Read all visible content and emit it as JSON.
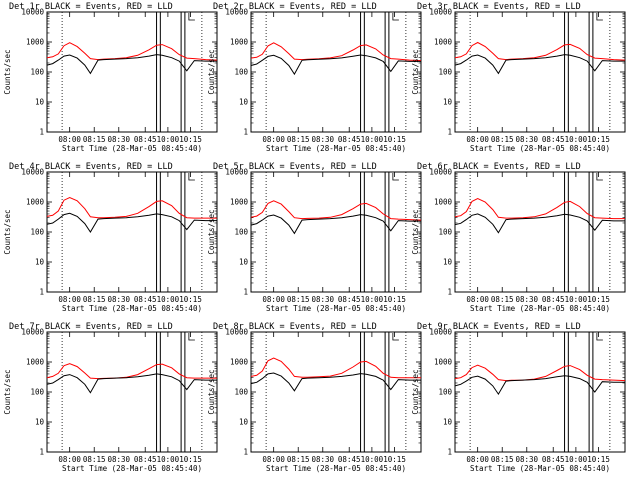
{
  "figure": {
    "ytick_labels": [
      "1",
      "10",
      "100",
      "1000",
      "10000"
    ],
    "ytick_values": [
      1,
      10,
      100,
      1000,
      10000
    ],
    "xtick_labels": [
      "08:00",
      "08:15",
      "08:30",
      "08:45",
      "10:00",
      "10:15"
    ],
    "xtick_times": [
      "08:00",
      "08:15",
      "08:30",
      "08:45",
      "10:00",
      "10:15"
    ],
    "ylabel": "Counts/sec",
    "xlabel": "Start Time (28-Mar-05 08:45:40)",
    "colors": {
      "events": "#000000",
      "lld": "#ff0000"
    }
  },
  "chart_data": [
    {
      "type": "line",
      "title": "Det 1r BLACK = Events, RED = LLD",
      "ylim": [
        1,
        10000
      ],
      "yscale": "log",
      "x_unit": "minutes",
      "x": [
        0,
        3,
        6,
        9,
        12,
        16,
        20,
        23,
        27,
        30,
        36,
        42,
        48,
        54,
        58,
        61,
        66,
        70,
        74,
        78,
        84,
        90
      ],
      "series": [
        {
          "color": "#ff0000",
          "values": [
            300,
            320,
            400,
            750,
            950,
            700,
            420,
            280,
            260,
            270,
            280,
            300,
            360,
            550,
            780,
            820,
            600,
            380,
            290,
            280,
            260,
            250
          ]
        },
        {
          "color": "#000000",
          "values": [
            170,
            190,
            250,
            340,
            370,
            290,
            170,
            90,
            250,
            260,
            270,
            280,
            300,
            340,
            380,
            360,
            300,
            230,
            110,
            240,
            230,
            230
          ]
        }
      ],
      "vlines_dotted": [
        8,
        82
      ],
      "vlines_solid": [
        58,
        60,
        71,
        73
      ]
    },
    {
      "type": "line",
      "title": "Det 2r BLACK = Events, RED = LLD",
      "ylim": [
        1,
        10000
      ],
      "yscale": "log",
      "x_unit": "minutes",
      "x": [
        0,
        3,
        6,
        9,
        12,
        16,
        20,
        23,
        27,
        30,
        36,
        42,
        48,
        54,
        58,
        61,
        66,
        70,
        74,
        78,
        84,
        90
      ],
      "series": [
        {
          "color": "#ff0000",
          "values": [
            290,
            310,
            390,
            740,
            940,
            690,
            410,
            270,
            260,
            265,
            275,
            295,
            350,
            540,
            760,
            800,
            590,
            370,
            280,
            270,
            250,
            240
          ]
        },
        {
          "color": "#000000",
          "values": [
            165,
            185,
            245,
            330,
            360,
            285,
            165,
            85,
            245,
            255,
            265,
            275,
            295,
            335,
            370,
            350,
            295,
            225,
            105,
            235,
            225,
            225
          ]
        }
      ],
      "vlines_dotted": [
        8,
        82
      ],
      "vlines_solid": [
        58,
        60,
        71,
        73
      ]
    },
    {
      "type": "line",
      "title": "Det 3r BLACK = Events, RED = LLD",
      "ylim": [
        1,
        10000
      ],
      "yscale": "log",
      "x_unit": "minutes",
      "x": [
        0,
        3,
        6,
        9,
        12,
        16,
        20,
        23,
        27,
        30,
        36,
        42,
        48,
        54,
        58,
        61,
        66,
        70,
        74,
        78,
        84,
        90
      ],
      "series": [
        {
          "color": "#ff0000",
          "values": [
            300,
            320,
            400,
            760,
            960,
            710,
            420,
            280,
            260,
            270,
            280,
            300,
            360,
            560,
            800,
            830,
            610,
            380,
            290,
            280,
            260,
            250
          ]
        },
        {
          "color": "#000000",
          "values": [
            170,
            190,
            250,
            340,
            370,
            290,
            170,
            90,
            250,
            260,
            270,
            280,
            300,
            340,
            380,
            360,
            300,
            230,
            110,
            240,
            230,
            230
          ]
        }
      ],
      "vlines_dotted": [
        8,
        82
      ],
      "vlines_solid": [
        58,
        60,
        71,
        73
      ]
    },
    {
      "type": "line",
      "title": "Det 4r BLACK = Events, RED = LLD",
      "ylim": [
        1,
        10000
      ],
      "yscale": "log",
      "x_unit": "minutes",
      "x": [
        0,
        3,
        6,
        9,
        12,
        16,
        20,
        23,
        27,
        30,
        36,
        42,
        48,
        54,
        58,
        61,
        66,
        70,
        74,
        78,
        84,
        90
      ],
      "series": [
        {
          "color": "#ff0000",
          "values": [
            330,
            360,
            500,
            1150,
            1400,
            1100,
            600,
            320,
            300,
            300,
            310,
            330,
            420,
            700,
            1050,
            1100,
            750,
            420,
            300,
            290,
            290,
            290
          ]
        },
        {
          "color": "#000000",
          "values": [
            180,
            200,
            270,
            380,
            420,
            330,
            190,
            100,
            270,
            280,
            290,
            300,
            320,
            360,
            400,
            380,
            320,
            240,
            120,
            250,
            240,
            240
          ]
        }
      ],
      "vlines_dotted": [
        8,
        82
      ],
      "vlines_solid": [
        58,
        60,
        71,
        73
      ]
    },
    {
      "type": "line",
      "title": "Det 5r BLACK = Events, RED = LLD",
      "ylim": [
        1,
        10000
      ],
      "yscale": "log",
      "x_unit": "minutes",
      "x": [
        0,
        3,
        6,
        9,
        12,
        16,
        20,
        23,
        27,
        30,
        36,
        42,
        48,
        54,
        58,
        61,
        66,
        70,
        74,
        78,
        84,
        90
      ],
      "series": [
        {
          "color": "#ff0000",
          "values": [
            310,
            340,
            450,
            900,
            1100,
            850,
            480,
            300,
            280,
            285,
            290,
            310,
            380,
            600,
            850,
            900,
            650,
            400,
            280,
            270,
            260,
            250
          ]
        },
        {
          "color": "#000000",
          "values": [
            170,
            190,
            250,
            340,
            370,
            290,
            170,
            90,
            250,
            260,
            270,
            280,
            300,
            340,
            380,
            360,
            300,
            230,
            110,
            240,
            230,
            230
          ]
        }
      ],
      "vlines_dotted": [
        8,
        82
      ],
      "vlines_solid": [
        58,
        60,
        71,
        73
      ]
    },
    {
      "type": "line",
      "title": "Det 6r BLACK = Events, RED = LLD",
      "ylim": [
        1,
        10000
      ],
      "yscale": "log",
      "x_unit": "minutes",
      "x": [
        0,
        3,
        6,
        9,
        12,
        16,
        20,
        23,
        27,
        30,
        36,
        42,
        48,
        54,
        58,
        61,
        66,
        70,
        74,
        78,
        84,
        90
      ],
      "series": [
        {
          "color": "#ff0000",
          "values": [
            320,
            350,
            480,
            1050,
            1300,
            1000,
            560,
            310,
            290,
            290,
            300,
            320,
            400,
            660,
            980,
            1050,
            700,
            410,
            300,
            290,
            280,
            280
          ]
        },
        {
          "color": "#000000",
          "values": [
            175,
            195,
            260,
            360,
            400,
            310,
            180,
            95,
            260,
            270,
            280,
            290,
            310,
            350,
            390,
            370,
            310,
            235,
            115,
            245,
            235,
            235
          ]
        }
      ],
      "vlines_dotted": [
        8,
        82
      ],
      "vlines_solid": [
        58,
        60,
        71,
        73
      ]
    },
    {
      "type": "line",
      "title": "Det 7r BLACK = Events, RED = LLD",
      "ylim": [
        1,
        10000
      ],
      "yscale": "log",
      "x_unit": "minutes",
      "x": [
        0,
        3,
        6,
        9,
        12,
        16,
        20,
        23,
        27,
        30,
        36,
        42,
        48,
        54,
        58,
        61,
        66,
        70,
        74,
        78,
        84,
        90
      ],
      "series": [
        {
          "color": "#ff0000",
          "values": [
            300,
            330,
            420,
            750,
            880,
            700,
            430,
            290,
            280,
            285,
            290,
            310,
            380,
            600,
            820,
            850,
            640,
            400,
            300,
            290,
            290,
            290
          ]
        },
        {
          "color": "#000000",
          "values": [
            180,
            200,
            260,
            350,
            380,
            300,
            180,
            95,
            270,
            280,
            290,
            300,
            320,
            360,
            400,
            380,
            320,
            240,
            120,
            260,
            250,
            250
          ]
        }
      ],
      "vlines_dotted": [
        8,
        82
      ],
      "vlines_solid": [
        58,
        60,
        71,
        73
      ]
    },
    {
      "type": "line",
      "title": "Det 8r BLACK = Events, RED = LLD",
      "ylim": [
        1,
        10000
      ],
      "yscale": "log",
      "x_unit": "minutes",
      "x": [
        0,
        3,
        6,
        9,
        12,
        16,
        20,
        23,
        27,
        30,
        36,
        42,
        48,
        54,
        58,
        61,
        66,
        70,
        74,
        78,
        84,
        90
      ],
      "series": [
        {
          "color": "#ff0000",
          "values": [
            330,
            360,
            500,
            1100,
            1350,
            1050,
            580,
            330,
            310,
            310,
            320,
            340,
            420,
            680,
            1000,
            1050,
            720,
            420,
            310,
            300,
            300,
            300
          ]
        },
        {
          "color": "#000000",
          "values": [
            190,
            210,
            280,
            400,
            430,
            340,
            200,
            110,
            280,
            290,
            300,
            310,
            330,
            370,
            410,
            390,
            330,
            250,
            120,
            260,
            250,
            250
          ]
        }
      ],
      "vlines_dotted": [
        8,
        82
      ],
      "vlines_solid": [
        58,
        60,
        71,
        73
      ]
    },
    {
      "type": "line",
      "title": "Det 9r BLACK = Events, RED = LLD",
      "ylim": [
        1,
        10000
      ],
      "yscale": "log",
      "x_unit": "minutes",
      "x": [
        0,
        3,
        6,
        9,
        12,
        16,
        20,
        23,
        27,
        30,
        36,
        42,
        48,
        54,
        58,
        61,
        66,
        70,
        74,
        78,
        84,
        90
      ],
      "series": [
        {
          "color": "#ff0000",
          "values": [
            280,
            300,
            380,
            650,
            780,
            620,
            390,
            260,
            240,
            245,
            250,
            270,
            330,
            520,
            720,
            760,
            560,
            360,
            270,
            260,
            250,
            240
          ]
        },
        {
          "color": "#000000",
          "values": [
            160,
            180,
            230,
            310,
            340,
            270,
            160,
            85,
            230,
            240,
            250,
            260,
            280,
            320,
            350,
            330,
            280,
            210,
            100,
            220,
            210,
            210
          ]
        }
      ],
      "vlines_dotted": [
        8,
        82
      ],
      "vlines_solid": [
        58,
        60,
        71,
        73
      ]
    }
  ]
}
